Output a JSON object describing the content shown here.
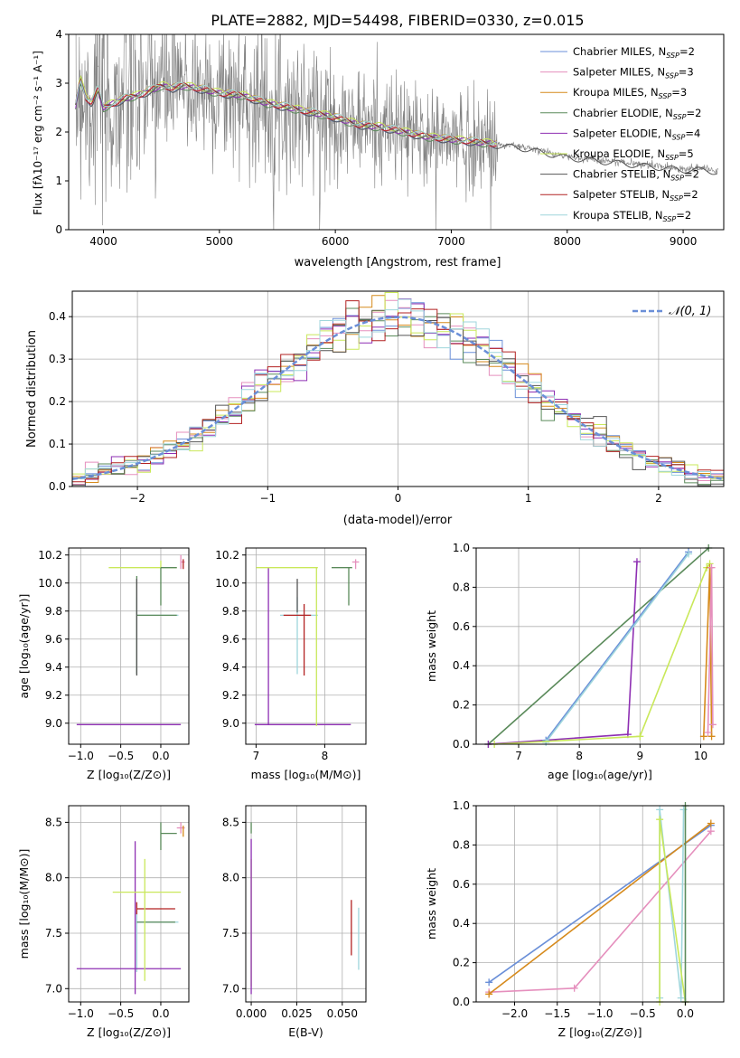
{
  "colors": [
    "#6a8fd8",
    "#e58fbd",
    "#d68a1c",
    "#5a8a5a",
    "#8e2fb3",
    "#c9e85a",
    "#555555",
    "#b22222",
    "#9fd6dc"
  ],
  "chart_data": [
    {
      "id": "spectrum",
      "type": "line",
      "title": "PLATE=2882, MJD=54498, FIBERID=0330, z=0.015",
      "xlabel": "wavelength [Angstrom, rest frame]",
      "ylabel": "Flux [fλ10⁻¹⁷ erg cm⁻² s⁻¹ A⁻¹]",
      "xlim": [
        3700,
        9350
      ],
      "ylim": [
        0,
        4
      ],
      "xticks": [
        4000,
        5000,
        6000,
        7000,
        8000,
        9000
      ],
      "yticks": [
        0,
        1,
        2,
        3,
        4
      ],
      "legend_position": "top-right",
      "legend": [
        "Chabrier MILES, N_SSP=2",
        "Salpeter MILES, N_SSP=3",
        "Kroupa MILES, N_SSP=3",
        "Chabrier ELODIE, N_SSP=2",
        "Salpeter ELODIE, N_SSP=4",
        "Kroupa ELODIE, N_SSP=5",
        "Chabrier STELIB, N_SSP=2",
        "Salpeter STELIB, N_SSP=2",
        "Kroupa STELIB, N_SSP=2"
      ],
      "model_curve": {
        "x": [
          3750,
          3800,
          3850,
          3900,
          3950,
          4000,
          4100,
          4200,
          4300,
          4400,
          4500,
          4600,
          4700,
          4800,
          4900,
          5000,
          5200,
          5400,
          5600,
          5800,
          6000,
          6200,
          6400,
          6600,
          6800,
          7000,
          7200,
          7400,
          7600,
          7800,
          8000,
          8200,
          8400,
          8600,
          8800,
          9000,
          9200,
          9300
        ],
        "y": [
          2.4,
          3.1,
          2.7,
          2.6,
          2.9,
          2.5,
          2.6,
          2.7,
          2.75,
          2.85,
          2.95,
          2.9,
          2.95,
          2.9,
          2.85,
          2.8,
          2.75,
          2.6,
          2.5,
          2.4,
          2.3,
          2.15,
          2.1,
          2.0,
          1.9,
          1.85,
          1.8,
          1.75,
          1.7,
          1.6,
          1.5,
          1.45,
          1.4,
          1.35,
          1.3,
          1.25,
          1.25,
          1.2
        ]
      },
      "grid": false
    },
    {
      "id": "residuals",
      "type": "histogram",
      "xlabel": "(data-model)/error",
      "ylabel": "Normed distribution",
      "xlim": [
        -2.5,
        2.5
      ],
      "ylim": [
        0,
        0.46
      ],
      "xticks": [
        -2,
        -1,
        0,
        1,
        2
      ],
      "yticks": [
        0.0,
        0.1,
        0.2,
        0.3,
        0.4
      ],
      "legend": [
        "𝒩(0, 1)"
      ],
      "legend_position": "top-right",
      "grid": true
    },
    {
      "id": "age-vs-Z",
      "type": "errorbar",
      "xlabel": "Z [log₁₀(Z/Z⊙)]",
      "ylabel": "age  [log₁₀(age/yr)]",
      "xlim": [
        -1.15,
        0.35
      ],
      "ylim": [
        8.85,
        10.25
      ],
      "xticks": [
        -1.0,
        -0.5,
        0.0
      ],
      "yticks": [
        9.0,
        9.2,
        9.4,
        9.6,
        9.8,
        10.0,
        10.2
      ],
      "grid": true,
      "points": [
        {
          "x": -0.3,
          "y": 9.77,
          "xerr": [
            0.0,
            0.52
          ],
          "yerr": [
            0.42,
            0.13
          ],
          "color": 8
        },
        {
          "x": -0.3,
          "y": 9.77,
          "xerr": [
            0.0,
            0.5
          ],
          "yerr": [
            0.42,
            0.28
          ],
          "color": 3
        },
        {
          "x": -0.45,
          "y": 8.99,
          "xerr": [
            0.6,
            0.7
          ],
          "yerr": [
            0.0,
            0.0
          ],
          "color": 4
        },
        {
          "x": 0.0,
          "y": 10.11,
          "xerr": [
            0.65,
            0.2
          ],
          "yerr": [
            0.0,
            0.05
          ],
          "color": 5
        },
        {
          "x": 0.0,
          "y": 10.11,
          "xerr": [
            0.0,
            0.2
          ],
          "yerr": [
            0.27,
            0.0
          ],
          "color": 3
        },
        {
          "x": -0.3,
          "y": 9.99,
          "xerr": [
            0.0,
            0.0
          ],
          "yerr": [
            0.65,
            0.04
          ],
          "color": 6
        },
        {
          "x": 0.25,
          "y": 10.15,
          "xerr": [
            0.0,
            0.05
          ],
          "yerr": [
            0.05,
            0.05
          ],
          "color": 1
        },
        {
          "x": 0.28,
          "y": 10.14,
          "xerr": [
            0.0,
            0.0
          ],
          "yerr": [
            0.04,
            0.03
          ],
          "color": 7
        }
      ]
    },
    {
      "id": "age-vs-mass",
      "type": "errorbar",
      "xlabel": "mass [log₁₀(M/M⊙)]",
      "ylabel": "",
      "xlim": [
        6.85,
        8.6
      ],
      "ylim": [
        8.85,
        10.25
      ],
      "xticks": [
        7,
        8
      ],
      "yticks": [
        9.0,
        9.2,
        9.4,
        9.6,
        9.8,
        10.0,
        10.2
      ],
      "grid": true,
      "points": [
        {
          "x": 7.6,
          "y": 9.77,
          "xerr": [
            0.25,
            0.3
          ],
          "yerr": [
            0.42,
            0.13
          ],
          "color": 8
        },
        {
          "x": 7.7,
          "y": 9.77,
          "xerr": [
            0.3,
            0.1
          ],
          "yerr": [
            0.43,
            0.08
          ],
          "color": 7
        },
        {
          "x": 7.18,
          "y": 8.99,
          "xerr": [
            0.2,
            1.2
          ],
          "yerr": [
            0.0,
            1.12
          ],
          "color": 4
        },
        {
          "x": 7.6,
          "y": 10.11,
          "xerr": [
            0.6,
            0.3
          ],
          "yerr": [
            0.0,
            0.0
          ],
          "color": 5
        },
        {
          "x": 7.88,
          "y": 9.5,
          "xerr": [
            0.0,
            0.0
          ],
          "yerr": [
            0.52,
            0.61
          ],
          "color": 5
        },
        {
          "x": 8.35,
          "y": 10.11,
          "xerr": [
            0.25,
            0.05
          ],
          "yerr": [
            0.27,
            0.0
          ],
          "color": 3
        },
        {
          "x": 7.6,
          "y": 9.99,
          "xerr": [
            0.0,
            0.0
          ],
          "yerr": [
            0.2,
            0.04
          ],
          "color": 6
        },
        {
          "x": 8.45,
          "y": 10.15,
          "xerr": [
            0.05,
            0.05
          ],
          "yerr": [
            0.05,
            0.02
          ],
          "color": 1
        }
      ]
    },
    {
      "id": "massweight-vs-age",
      "type": "line",
      "xlabel": "age  [log₁₀(age/yr)]",
      "ylabel": "mass weight",
      "xlim": [
        6.3,
        10.38
      ],
      "ylim": [
        0,
        1
      ],
      "xticks": [
        7,
        8,
        9,
        10
      ],
      "yticks": [
        0.0,
        0.2,
        0.4,
        0.6,
        0.8,
        1.0
      ],
      "grid": true,
      "series": [
        {
          "x": [
            6.5,
            10.13
          ],
          "y": [
            0.0,
            1.0
          ],
          "color": 3
        },
        {
          "x": [
            6.5,
            8.8,
            8.95
          ],
          "y": [
            0.0,
            0.05,
            0.93
          ],
          "color": 4
        },
        {
          "x": [
            7.45,
            9.8
          ],
          "y": [
            0.02,
            0.98
          ],
          "color": 0
        },
        {
          "x": [
            7.45,
            9.8
          ],
          "y": [
            0.01,
            0.97
          ],
          "color": 8
        },
        {
          "x": [
            6.6,
            9.0,
            10.1,
            10.15
          ],
          "y": [
            0.0,
            0.04,
            0.9,
            0.92
          ],
          "color": 5
        },
        {
          "x": [
            10.05,
            10.15,
            10.18
          ],
          "y": [
            0.04,
            0.9,
            0.04
          ],
          "color": 2
        },
        {
          "x": [
            10.12,
            10.18,
            10.2
          ],
          "y": [
            0.06,
            0.9,
            0.1
          ],
          "color": 1
        }
      ]
    },
    {
      "id": "mass-vs-Z",
      "type": "errorbar",
      "xlabel": "Z [log₁₀(Z/Z⊙)]",
      "ylabel": "mass [log₁₀(M/M⊙)]",
      "xlim": [
        -1.15,
        0.35
      ],
      "ylim": [
        6.88,
        8.65
      ],
      "xticks": [
        -1.0,
        -0.5,
        0.0
      ],
      "yticks": [
        7.0,
        7.5,
        8.0,
        8.5
      ],
      "grid": true,
      "points": [
        {
          "x": -0.3,
          "y": 7.6,
          "xerr": [
            0.0,
            0.52
          ],
          "yerr": [
            0.45,
            0.1
          ],
          "color": 8
        },
        {
          "x": -0.3,
          "y": 7.6,
          "xerr": [
            0.0,
            0.48
          ],
          "yerr": [
            0.0,
            0.0
          ],
          "color": 3
        },
        {
          "x": -0.3,
          "y": 7.72,
          "xerr": [
            0.0,
            0.48
          ],
          "yerr": [
            0.05,
            0.06
          ],
          "color": 7
        },
        {
          "x": -0.45,
          "y": 7.18,
          "xerr": [
            0.6,
            0.7
          ],
          "yerr": [
            0.0,
            0.0
          ],
          "color": 4
        },
        {
          "x": -0.32,
          "y": 7.3,
          "xerr": [
            0.0,
            0.0
          ],
          "yerr": [
            0.35,
            1.03
          ],
          "color": 4
        },
        {
          "x": -0.2,
          "y": 7.87,
          "xerr": [
            0.4,
            0.45
          ],
          "yerr": [
            0.8,
            0.3
          ],
          "color": 5
        },
        {
          "x": 0.0,
          "y": 8.4,
          "xerr": [
            0.0,
            0.2
          ],
          "yerr": [
            0.15,
            0.1
          ],
          "color": 3
        },
        {
          "x": 0.25,
          "y": 8.45,
          "xerr": [
            0.05,
            0.05
          ],
          "yerr": [
            0.05,
            0.05
          ],
          "color": 1
        },
        {
          "x": 0.28,
          "y": 8.42,
          "xerr": [
            0.0,
            0.0
          ],
          "yerr": [
            0.05,
            0.05
          ],
          "color": 2
        }
      ]
    },
    {
      "id": "mass-vs-EBV",
      "type": "errorbar",
      "xlabel": "E(B-V)",
      "ylabel": "",
      "xlim": [
        -0.003,
        0.063
      ],
      "ylim": [
        6.88,
        8.65
      ],
      "xticks": [
        0.0,
        0.025,
        0.05
      ],
      "yticks": [
        7.0,
        7.5,
        8.0,
        8.5
      ],
      "grid": true,
      "points": [
        {
          "x": 0.0,
          "y": 7.87,
          "xerr": [
            0.0,
            0.0
          ],
          "yerr": [
            0.85,
            0.3
          ],
          "color": 5
        },
        {
          "x": 0.0,
          "y": 7.2,
          "xerr": [
            0.0,
            0.0
          ],
          "yerr": [
            0.25,
            1.15
          ],
          "color": 4
        },
        {
          "x": 0.0,
          "y": 8.4,
          "xerr": [
            0.0,
            0.0
          ],
          "yerr": [
            0.0,
            0.1
          ],
          "color": 3
        },
        {
          "x": 0.055,
          "y": 7.55,
          "xerr": [
            0.0,
            0.0
          ],
          "yerr": [
            0.25,
            0.25
          ],
          "color": 7
        },
        {
          "x": 0.059,
          "y": 7.45,
          "xerr": [
            0.0,
            0.0
          ],
          "yerr": [
            0.28,
            0.28
          ],
          "color": 8
        }
      ]
    },
    {
      "id": "massweight-vs-Z",
      "type": "line",
      "xlabel": "Z [log₁₀(Z/Z⊙)]",
      "ylabel": "mass weight",
      "xlim": [
        -2.45,
        0.45
      ],
      "ylim": [
        0,
        1
      ],
      "xticks": [
        -2.0,
        -1.5,
        -1.0,
        -0.5,
        0.0
      ],
      "yticks": [
        0.0,
        0.2,
        0.4,
        0.6,
        0.8,
        1.0
      ],
      "grid": true,
      "series": [
        {
          "x": [
            -2.3,
            0.3
          ],
          "y": [
            0.1,
            0.9
          ],
          "color": 0
        },
        {
          "x": [
            -2.3,
            -1.3,
            0.3
          ],
          "y": [
            0.05,
            0.07,
            0.87
          ],
          "color": 1
        },
        {
          "x": [
            -2.3,
            0.3
          ],
          "y": [
            0.04,
            0.91
          ],
          "color": 2
        },
        {
          "x": [
            -0.3,
            -0.3,
            -0.05,
            -0.02
          ],
          "y": [
            0.02,
            0.98,
            0.02,
            0.98
          ],
          "color": 8
        },
        {
          "x": [
            -0.3,
            -0.3,
            0.0
          ],
          "y": [
            0.0,
            0.93,
            0.0
          ],
          "color": 5
        },
        {
          "x": [
            0.0,
            0.0
          ],
          "y": [
            0.0,
            1.0
          ],
          "color": 3
        }
      ]
    }
  ]
}
